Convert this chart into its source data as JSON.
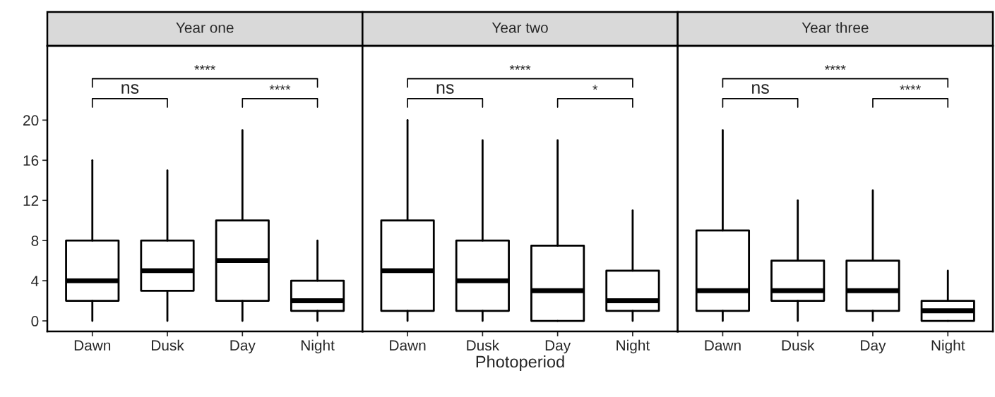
{
  "chart_data": [
    {
      "type": "box",
      "title": "Year one",
      "categories": [
        "Dawn",
        "Dusk",
        "Day",
        "Night"
      ],
      "ylim": [
        -1.05,
        27.4
      ],
      "yticks": [
        0,
        4,
        8,
        12,
        16,
        20
      ],
      "grid": false,
      "annotations": [
        "****",
        "ns",
        "****"
      ],
      "boxes": [
        {
          "low": 0,
          "q1": 2,
          "median": 4,
          "q3": 8,
          "high": 16
        },
        {
          "low": 0,
          "q1": 3,
          "median": 5,
          "q3": 8,
          "high": 15
        },
        {
          "low": 0,
          "q1": 2,
          "median": 6,
          "q3": 10,
          "high": 19
        },
        {
          "low": 0,
          "q1": 1,
          "median": 2,
          "q3": 4,
          "high": 8
        }
      ]
    },
    {
      "type": "box",
      "title": "Year two",
      "xlabel": "Photoperiod",
      "categories": [
        "Dawn",
        "Dusk",
        "Day",
        "Night"
      ],
      "ylim": [
        -1.05,
        27.4
      ],
      "yticks": [
        0,
        4,
        8,
        12,
        16,
        20
      ],
      "tick_labels": "x",
      "grid": false,
      "annotations": [
        "****",
        "ns",
        "*"
      ],
      "boxes": [
        {
          "low": 0,
          "q1": 1,
          "median": 5,
          "q3": 10,
          "high": 20
        },
        {
          "low": 0,
          "q1": 1,
          "median": 4,
          "q3": 8,
          "high": 18
        },
        {
          "low": 0,
          "q1": 0,
          "median": 3,
          "q3": 7.5,
          "high": 18
        },
        {
          "low": 0,
          "q1": 1,
          "median": 2,
          "q3": 5,
          "high": 11
        }
      ]
    },
    {
      "type": "box",
      "title": "Year three",
      "categories": [
        "Dawn",
        "Dusk",
        "Day",
        "Night"
      ],
      "ylim": [
        -1.05,
        27.4
      ],
      "yticks": [
        0,
        4,
        8,
        12,
        16,
        20
      ],
      "tick_labels": "x",
      "grid": false,
      "annotations": [
        "****",
        "ns",
        "****"
      ],
      "boxes": [
        {
          "low": 0,
          "q1": 1,
          "median": 3,
          "q3": 9,
          "high": 19
        },
        {
          "low": 0,
          "q1": 2,
          "median": 3,
          "q3": 6,
          "high": 12
        },
        {
          "low": 0,
          "q1": 1,
          "median": 3,
          "q3": 6,
          "high": 13
        },
        {
          "low": 0,
          "q1": 0,
          "median": 1,
          "q3": 2,
          "high": 5
        }
      ]
    }
  ]
}
